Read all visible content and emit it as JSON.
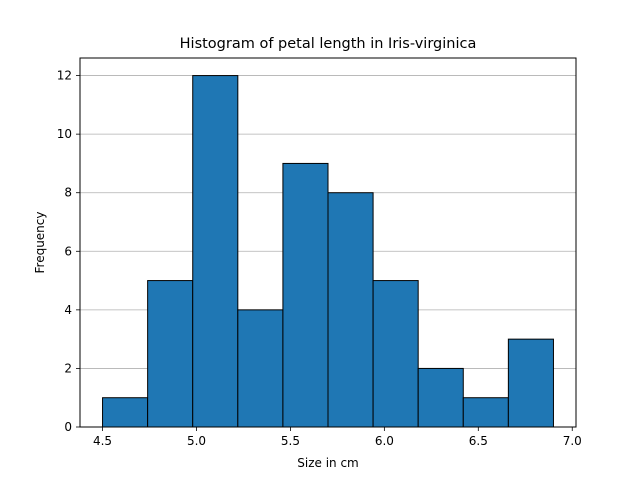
{
  "chart_data": {
    "type": "bar",
    "title": "Histogram of petal length in Iris-virginica",
    "xlabel": "Size in cm",
    "ylabel": "Frequency",
    "bin_edges": [
      4.5,
      4.74,
      4.98,
      5.22,
      5.46,
      5.7,
      5.94,
      6.18,
      6.42,
      6.66,
      6.9
    ],
    "values": [
      1,
      5,
      12,
      4,
      9,
      8,
      5,
      2,
      1,
      3
    ],
    "xlim": [
      4.38,
      7.02
    ],
    "ylim": [
      0,
      12.6
    ],
    "xticks": [
      4.5,
      5.0,
      5.5,
      6.0,
      6.5,
      7.0
    ],
    "xtick_labels": [
      "4.5",
      "5.0",
      "5.5",
      "6.0",
      "6.5",
      "7.0"
    ],
    "yticks": [
      0,
      2,
      4,
      6,
      8,
      10,
      12
    ],
    "ytick_labels": [
      "0",
      "2",
      "4",
      "6",
      "8",
      "10",
      "12"
    ],
    "grid": "y",
    "bar_color": "#1f77b4",
    "edge_color": "#000000",
    "grid_color": "#b0b0b0"
  }
}
